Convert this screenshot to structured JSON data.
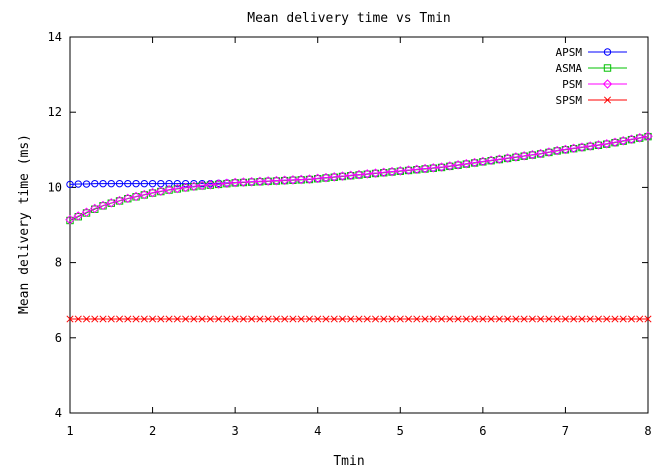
{
  "chart_data": {
    "type": "line",
    "title": "Mean delivery time vs Tmin",
    "xlabel": "Tmin",
    "ylabel": "Mean delivery time (ms)",
    "xlim": [
      1,
      8
    ],
    "ylim": [
      4,
      14
    ],
    "x_ticks": [
      "1",
      "2",
      "3",
      "4",
      "5",
      "6",
      "7",
      "8"
    ],
    "y_ticks": [
      "4",
      "6",
      "8",
      "10",
      "12",
      "14"
    ],
    "grid": false,
    "legend_position": "top-right",
    "x": [
      1.0,
      1.1,
      1.2,
      1.3,
      1.4,
      1.5,
      1.6,
      1.7,
      1.8,
      1.9,
      2.0,
      2.1,
      2.2,
      2.3,
      2.4,
      2.5,
      2.6,
      2.7,
      2.8,
      2.9,
      3.0,
      3.1,
      3.2,
      3.3,
      3.4,
      3.5,
      3.6,
      3.7,
      3.8,
      3.9,
      4.0,
      4.1,
      4.2,
      4.3,
      4.4,
      4.5,
      4.6,
      4.7,
      4.8,
      4.9,
      5.0,
      5.1,
      5.2,
      5.3,
      5.4,
      5.5,
      5.6,
      5.7,
      5.8,
      5.9,
      6.0,
      6.1,
      6.2,
      6.3,
      6.4,
      6.5,
      6.6,
      6.7,
      6.8,
      6.9,
      7.0,
      7.1,
      7.2,
      7.3,
      7.4,
      7.5,
      7.6,
      7.7,
      7.8,
      7.9,
      8.0
    ],
    "series": [
      {
        "name": "APSM",
        "color": "#0000ff",
        "marker": "circle",
        "values": [
          10.08,
          10.09,
          10.09,
          10.1,
          10.1,
          10.1,
          10.1,
          10.1,
          10.1,
          10.1,
          10.1,
          10.1,
          10.1,
          10.1,
          10.1,
          10.1,
          10.1,
          10.1,
          10.11,
          10.12,
          10.13,
          10.14,
          10.15,
          10.16,
          10.17,
          10.18,
          10.19,
          10.2,
          10.21,
          10.22,
          10.24,
          10.26,
          10.28,
          10.3,
          10.32,
          10.34,
          10.36,
          10.38,
          10.4,
          10.42,
          10.44,
          10.46,
          10.48,
          10.5,
          10.52,
          10.54,
          10.57,
          10.6,
          10.63,
          10.66,
          10.69,
          10.72,
          10.75,
          10.78,
          10.81,
          10.84,
          10.87,
          10.9,
          10.94,
          10.98,
          11.01,
          11.04,
          11.07,
          11.1,
          11.13,
          11.16,
          11.2,
          11.24,
          11.28,
          11.32,
          11.36
        ]
      },
      {
        "name": "ASMA",
        "color": "#00c000",
        "marker": "square",
        "values": [
          9.12,
          9.22,
          9.32,
          9.42,
          9.51,
          9.58,
          9.64,
          9.7,
          9.75,
          9.8,
          9.85,
          9.89,
          9.93,
          9.96,
          9.99,
          10.02,
          10.04,
          10.06,
          10.08,
          10.1,
          10.12,
          10.13,
          10.14,
          10.15,
          10.16,
          10.17,
          10.18,
          10.19,
          10.2,
          10.21,
          10.23,
          10.25,
          10.27,
          10.29,
          10.31,
          10.33,
          10.35,
          10.37,
          10.39,
          10.41,
          10.43,
          10.45,
          10.47,
          10.49,
          10.51,
          10.53,
          10.56,
          10.59,
          10.62,
          10.65,
          10.68,
          10.71,
          10.74,
          10.77,
          10.8,
          10.83,
          10.86,
          10.89,
          10.93,
          10.97,
          11.0,
          11.03,
          11.06,
          11.09,
          11.12,
          11.15,
          11.19,
          11.23,
          11.27,
          11.31,
          11.35
        ]
      },
      {
        "name": "PSM",
        "color": "#ff00ff",
        "marker": "diamond",
        "values": [
          9.14,
          9.24,
          9.34,
          9.44,
          9.52,
          9.59,
          9.65,
          9.71,
          9.76,
          9.81,
          9.86,
          9.9,
          9.94,
          9.97,
          10.0,
          10.03,
          10.05,
          10.07,
          10.09,
          10.11,
          10.13,
          10.14,
          10.15,
          10.16,
          10.17,
          10.18,
          10.19,
          10.2,
          10.21,
          10.22,
          10.24,
          10.26,
          10.28,
          10.3,
          10.32,
          10.34,
          10.36,
          10.38,
          10.4,
          10.42,
          10.44,
          10.46,
          10.48,
          10.5,
          10.52,
          10.54,
          10.57,
          10.6,
          10.63,
          10.66,
          10.69,
          10.72,
          10.75,
          10.78,
          10.81,
          10.84,
          10.87,
          10.9,
          10.94,
          10.98,
          11.01,
          11.04,
          11.07,
          11.1,
          11.13,
          11.16,
          11.2,
          11.24,
          11.28,
          11.32,
          11.36
        ]
      },
      {
        "name": "SPSM",
        "color": "#ff0000",
        "marker": "x",
        "values": [
          6.5,
          6.5,
          6.5,
          6.5,
          6.5,
          6.5,
          6.5,
          6.5,
          6.5,
          6.5,
          6.5,
          6.5,
          6.5,
          6.5,
          6.5,
          6.5,
          6.5,
          6.5,
          6.5,
          6.5,
          6.5,
          6.5,
          6.5,
          6.5,
          6.5,
          6.5,
          6.5,
          6.5,
          6.5,
          6.5,
          6.5,
          6.5,
          6.5,
          6.5,
          6.5,
          6.5,
          6.5,
          6.5,
          6.5,
          6.5,
          6.5,
          6.5,
          6.5,
          6.5,
          6.5,
          6.5,
          6.5,
          6.5,
          6.5,
          6.5,
          6.5,
          6.5,
          6.5,
          6.5,
          6.5,
          6.5,
          6.5,
          6.5,
          6.5,
          6.5,
          6.5,
          6.5,
          6.5,
          6.5,
          6.5,
          6.5,
          6.5,
          6.5,
          6.5,
          6.5,
          6.5
        ]
      }
    ]
  }
}
